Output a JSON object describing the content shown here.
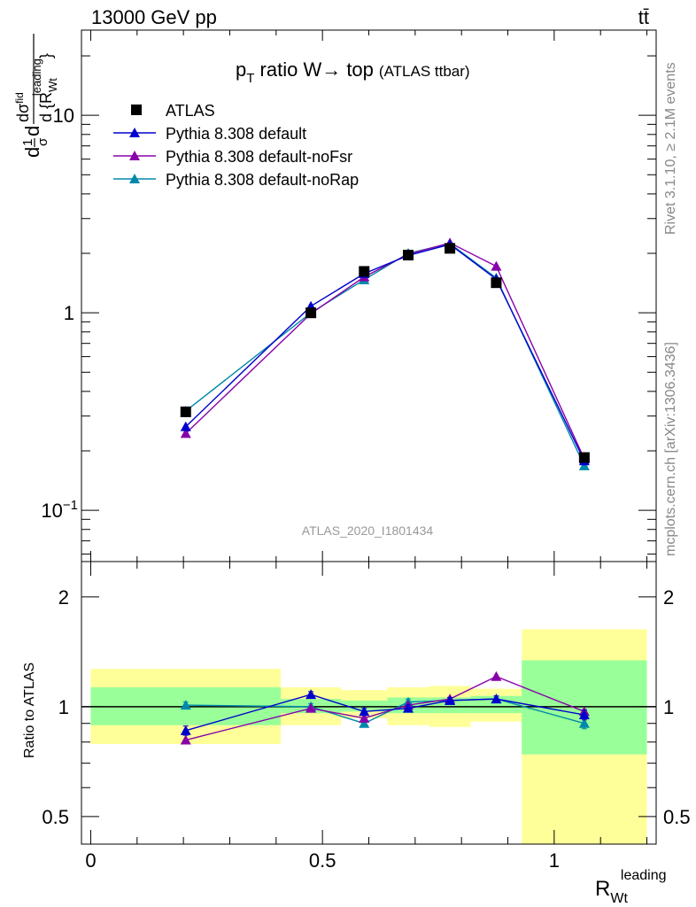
{
  "header": {
    "left": "13000 GeV pp",
    "right": "tt̄"
  },
  "side_labels": {
    "rivet": "Rivet 3.1.10, ≥ 2.1M events",
    "mcplots": "mcplots.cern.ch [arXiv:1306.3436]"
  },
  "chart_data": [
    {
      "type": "line",
      "panel": "main",
      "title": "p_T ratio W→ top (ATLAS ttbar)",
      "title_parts": {
        "main": "p",
        "sub": "T",
        "rest": " ratio W→ top",
        "small": "(ATLAS ttbar)"
      },
      "ylabel": "1/σ dσ/d{R_Wt^leading}",
      "ylabel_parts": {
        "a": "d",
        "b": "1",
        "c": "σ",
        "d": "d",
        "e": "dσ",
        "sup": "fid",
        "f": "d {R",
        "g": "Wt",
        "h": "leading",
        "i": "}"
      },
      "yscale": "log",
      "ylim": [
        0.055,
        27
      ],
      "xlim": [
        -0.02,
        1.22
      ],
      "y_ticks": [
        {
          "value": 0.1,
          "base": "10",
          "exp": "−1"
        },
        {
          "value": 1,
          "label": "1"
        },
        {
          "value": 10,
          "label": "10"
        }
      ],
      "watermark": "ATLAS_2020_I1801434",
      "x": [
        0.205,
        0.475,
        0.59,
        0.685,
        0.775,
        0.875,
        1.065
      ],
      "series": [
        {
          "name": "ATLAS",
          "marker": "square",
          "color": "#000000",
          "values": [
            0.315,
            1.0,
            1.62,
            1.96,
            2.12,
            1.42,
            0.185
          ]
        },
        {
          "name": "Pythia 8.308 default",
          "marker": "triangle",
          "color": "#0000cc",
          "values": [
            0.265,
            1.08,
            1.58,
            1.95,
            2.22,
            1.48,
            0.178
          ]
        },
        {
          "name": "Pythia 8.308 default-noFsr",
          "marker": "triangle",
          "color": "#8800aa",
          "values": [
            0.245,
            0.99,
            1.52,
            1.98,
            2.26,
            1.72,
            0.182
          ]
        },
        {
          "name": "Pythia 8.308 default-noRap",
          "marker": "triangle",
          "color": "#0088aa",
          "values": [
            0.318,
            1.0,
            1.47,
            2.0,
            2.24,
            1.5,
            0.168
          ]
        }
      ]
    },
    {
      "type": "line",
      "panel": "ratio",
      "ylabel": "Ratio to ATLAS",
      "xlabel": "R_Wt^leading",
      "xlabel_parts": {
        "main": "R",
        "sub": "Wt",
        "sup": "leading"
      },
      "yscale": "log",
      "ylim": [
        0.42,
        2.5
      ],
      "xlim": [
        -0.02,
        1.22
      ],
      "y_ticks": [
        {
          "value": 0.5,
          "label": "0.5"
        },
        {
          "value": 1,
          "label": "1"
        },
        {
          "value": 2,
          "label": "2"
        }
      ],
      "x_ticks": [
        {
          "value": 0,
          "label": "0"
        },
        {
          "value": 0.5,
          "label": "0.5"
        },
        {
          "value": 1,
          "label": "1"
        }
      ],
      "bands": [
        {
          "x0": 0.0,
          "x1": 0.41,
          "outer": [
            0.79,
            1.27
          ],
          "inner": [
            0.89,
            1.13
          ]
        },
        {
          "x0": 0.41,
          "x1": 0.54,
          "outer": [
            0.89,
            1.13
          ],
          "inner": [
            0.96,
            1.05
          ]
        },
        {
          "x0": 0.54,
          "x1": 0.64,
          "outer": [
            0.93,
            1.11
          ],
          "inner": [
            0.97,
            1.04
          ]
        },
        {
          "x0": 0.64,
          "x1": 0.73,
          "outer": [
            0.89,
            1.13
          ],
          "inner": [
            0.96,
            1.06
          ]
        },
        {
          "x0": 0.73,
          "x1": 0.82,
          "outer": [
            0.88,
            1.14
          ],
          "inner": [
            0.96,
            1.06
          ]
        },
        {
          "x0": 0.82,
          "x1": 0.93,
          "outer": [
            0.91,
            1.12
          ],
          "inner": [
            0.96,
            1.07
          ]
        },
        {
          "x0": 0.93,
          "x1": 1.2,
          "outer": [
            0.41,
            1.63
          ],
          "inner": [
            0.74,
            1.34
          ]
        }
      ],
      "x": [
        0.205,
        0.475,
        0.59,
        0.685,
        0.775,
        0.875,
        1.065
      ],
      "series": [
        {
          "name": "Pythia 8.308 default",
          "color": "#0000cc",
          "values": [
            0.86,
            1.08,
            0.97,
            0.99,
            1.04,
            1.05,
            0.95
          ],
          "errors": [
            0.025,
            0.02,
            0.02,
            0.02,
            0.02,
            0.02,
            0.03
          ]
        },
        {
          "name": "Pythia 8.308 default-noFsr",
          "color": "#8800aa",
          "values": [
            0.81,
            0.99,
            0.93,
            1.01,
            1.05,
            1.21,
            0.97
          ],
          "errors": [
            0.0,
            0.0,
            0.0,
            0.0,
            0.0,
            0.0,
            0.0
          ]
        },
        {
          "name": "Pythia 8.308 default-noRap",
          "color": "#0088aa",
          "values": [
            1.01,
            1.0,
            0.9,
            1.03,
            1.04,
            1.05,
            0.9
          ],
          "errors": [
            0.02,
            0.02,
            0.02,
            0.02,
            0.02,
            0.02,
            0.03
          ]
        }
      ]
    }
  ],
  "colors": {
    "band_outer": "#ffff99",
    "band_inner": "#99ff99",
    "watermark": "#999999",
    "side_text": "#888888"
  }
}
